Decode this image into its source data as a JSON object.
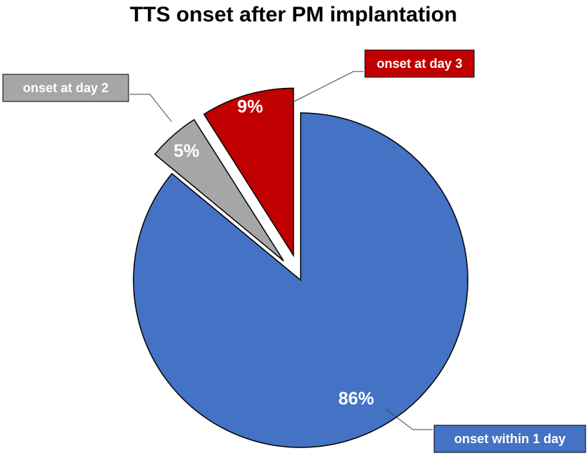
{
  "chart_data": {
    "type": "pie",
    "title": "TTS onset after PM implantation",
    "categories": [
      "onset within 1 day",
      "onset at day 2",
      "onset at day 3"
    ],
    "values": [
      86,
      5,
      9
    ],
    "value_labels": [
      "86%",
      "5%",
      "9%"
    ],
    "exploded": [
      false,
      true,
      true
    ],
    "colors": [
      "#4472C4",
      "#A6A6A6",
      "#C00000"
    ],
    "legend": "none",
    "label_style": "callouts"
  }
}
